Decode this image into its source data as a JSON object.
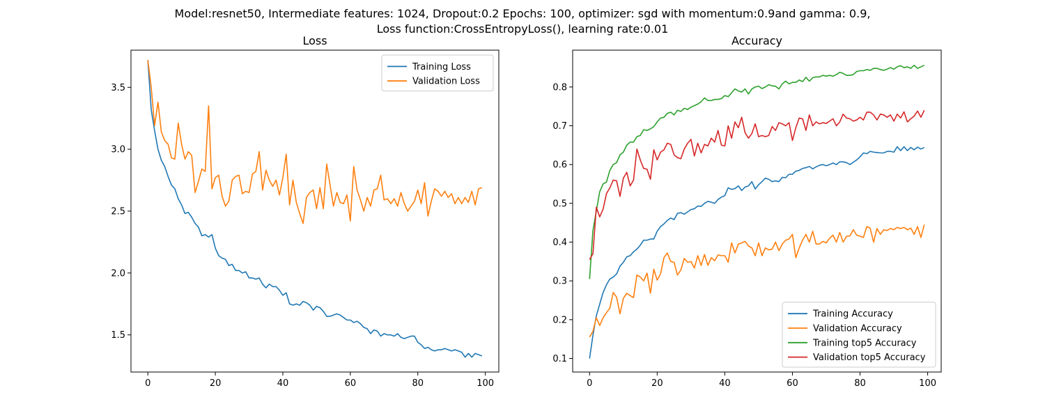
{
  "figure": {
    "suptitle_line1": "Model:resnet50, Intermediate features: 1024, Dropout:0.2 Epochs: 100, optimizer: sgd with momentum:0.9and gamma: 0.9,",
    "suptitle_line2": "Loss function:CrossEntropyLoss(), learning rate:0.01"
  },
  "colors": {
    "blue": "#1f77b4",
    "orange": "#ff7f0e",
    "green": "#2ca02c",
    "red": "#d62728"
  },
  "chart_data": [
    {
      "type": "line",
      "title": "Loss",
      "xlabel": "",
      "ylabel": "",
      "xlim": [
        -5,
        104
      ],
      "ylim": [
        1.2,
        3.8
      ],
      "xticks": [
        0,
        20,
        40,
        60,
        80,
        100
      ],
      "xtick_labels": [
        "0",
        "20",
        "40",
        "60",
        "80",
        "100"
      ],
      "yticks": [
        1.5,
        2.0,
        2.5,
        3.0,
        3.5
      ],
      "ytick_labels": [
        "1.5",
        "2.0",
        "2.5",
        "3.0",
        "3.5"
      ],
      "grid": false,
      "legend_position": "top-right",
      "series": [
        {
          "name": "Training Loss",
          "color": "#1f77b4",
          "x_start": 0,
          "values": [
            3.72,
            3.32,
            3.15,
            3.0,
            2.91,
            2.86,
            2.78,
            2.71,
            2.68,
            2.6,
            2.55,
            2.48,
            2.49,
            2.45,
            2.4,
            2.37,
            2.3,
            2.31,
            2.29,
            2.31,
            2.2,
            2.14,
            2.12,
            2.11,
            2.06,
            2.07,
            2.02,
            2.02,
            2.0,
            2.01,
            1.96,
            1.96,
            1.95,
            1.96,
            1.91,
            1.88,
            1.91,
            1.89,
            1.89,
            1.86,
            1.82,
            1.84,
            1.75,
            1.74,
            1.75,
            1.74,
            1.77,
            1.76,
            1.74,
            1.7,
            1.73,
            1.72,
            1.69,
            1.65,
            1.65,
            1.66,
            1.67,
            1.66,
            1.64,
            1.62,
            1.62,
            1.6,
            1.61,
            1.59,
            1.56,
            1.55,
            1.51,
            1.54,
            1.53,
            1.49,
            1.51,
            1.5,
            1.5,
            1.49,
            1.51,
            1.48,
            1.47,
            1.48,
            1.49,
            1.49,
            1.44,
            1.42,
            1.39,
            1.4,
            1.38,
            1.37,
            1.38,
            1.38,
            1.39,
            1.38,
            1.37,
            1.38,
            1.37,
            1.36,
            1.32,
            1.35,
            1.32,
            1.35,
            1.34,
            1.33
          ]
        },
        {
          "name": "Validation Loss",
          "color": "#ff7f0e",
          "x_start": 0,
          "values": [
            3.72,
            3.5,
            3.19,
            3.38,
            3.14,
            3.07,
            3.04,
            2.93,
            2.92,
            3.21,
            3.04,
            2.92,
            2.98,
            2.95,
            2.65,
            2.74,
            2.84,
            2.82,
            3.35,
            2.68,
            2.77,
            2.79,
            2.62,
            2.54,
            2.58,
            2.75,
            2.78,
            2.79,
            2.64,
            2.66,
            2.65,
            2.8,
            2.82,
            2.98,
            2.67,
            2.83,
            2.75,
            2.7,
            2.75,
            2.63,
            2.77,
            2.96,
            2.55,
            2.75,
            2.57,
            2.48,
            2.4,
            2.61,
            2.65,
            2.67,
            2.52,
            2.69,
            2.52,
            2.88,
            2.71,
            2.54,
            2.65,
            2.57,
            2.56,
            2.63,
            2.42,
            2.86,
            2.67,
            2.59,
            2.5,
            2.61,
            2.54,
            2.67,
            2.68,
            2.79,
            2.59,
            2.6,
            2.56,
            2.6,
            2.54,
            2.65,
            2.56,
            2.5,
            2.54,
            2.58,
            2.67,
            2.56,
            2.73,
            2.46,
            2.58,
            2.68,
            2.66,
            2.62,
            2.66,
            2.61,
            2.64,
            2.56,
            2.61,
            2.56,
            2.61,
            2.57,
            2.66,
            2.55,
            2.68,
            2.69
          ]
        }
      ]
    },
    {
      "type": "line",
      "title": "Accuracy",
      "xlabel": "",
      "ylabel": "",
      "xlim": [
        -5,
        104
      ],
      "ylim": [
        0.065,
        0.895
      ],
      "xticks": [
        0,
        20,
        40,
        60,
        80,
        100
      ],
      "xtick_labels": [
        "0",
        "20",
        "40",
        "60",
        "80",
        "100"
      ],
      "yticks": [
        0.1,
        0.2,
        0.3,
        0.4,
        0.5,
        0.6,
        0.7,
        0.8
      ],
      "ytick_labels": [
        "0.1",
        "0.2",
        "0.3",
        "0.4",
        "0.5",
        "0.6",
        "0.7",
        "0.8"
      ],
      "grid": false,
      "legend_position": "bottom-right",
      "series": [
        {
          "name": "Training Accuracy",
          "color": "#1f77b4",
          "x_start": 0,
          "values": [
            0.1,
            0.16,
            0.21,
            0.24,
            0.27,
            0.29,
            0.305,
            0.31,
            0.318,
            0.338,
            0.348,
            0.362,
            0.365,
            0.375,
            0.382,
            0.392,
            0.405,
            0.405,
            0.408,
            0.408,
            0.428,
            0.44,
            0.447,
            0.456,
            0.462,
            0.458,
            0.474,
            0.476,
            0.472,
            0.478,
            0.484,
            0.486,
            0.493,
            0.492,
            0.5,
            0.505,
            0.503,
            0.5,
            0.51,
            0.516,
            0.52,
            0.54,
            0.536,
            0.538,
            0.545,
            0.533,
            0.542,
            0.545,
            0.556,
            0.537,
            0.548,
            0.556,
            0.565,
            0.562,
            0.556,
            0.558,
            0.556,
            0.567,
            0.566,
            0.575,
            0.575,
            0.583,
            0.585,
            0.59,
            0.592,
            0.595,
            0.589,
            0.594,
            0.598,
            0.6,
            0.597,
            0.6,
            0.604,
            0.6,
            0.607,
            0.607,
            0.605,
            0.6,
            0.606,
            0.612,
            0.62,
            0.63,
            0.628,
            0.634,
            0.632,
            0.631,
            0.63,
            0.63,
            0.634,
            0.634,
            0.632,
            0.646,
            0.636,
            0.646,
            0.636,
            0.644,
            0.638,
            0.645,
            0.64,
            0.644
          ]
        },
        {
          "name": "Validation Accuracy",
          "color": "#ff7f0e",
          "x_start": 0,
          "values": [
            0.155,
            0.17,
            0.205,
            0.185,
            0.205,
            0.218,
            0.23,
            0.27,
            0.258,
            0.215,
            0.255,
            0.268,
            0.262,
            0.257,
            0.315,
            0.31,
            0.3,
            0.32,
            0.268,
            0.33,
            0.302,
            0.318,
            0.36,
            0.372,
            0.35,
            0.348,
            0.315,
            0.328,
            0.358,
            0.348,
            0.35,
            0.333,
            0.365,
            0.34,
            0.368,
            0.34,
            0.36,
            0.352,
            0.367,
            0.365,
            0.365,
            0.348,
            0.398,
            0.372,
            0.395,
            0.398,
            0.402,
            0.39,
            0.385,
            0.365,
            0.398,
            0.365,
            0.385,
            0.38,
            0.382,
            0.4,
            0.378,
            0.395,
            0.405,
            0.408,
            0.42,
            0.36,
            0.385,
            0.405,
            0.42,
            0.4,
            0.428,
            0.395,
            0.395,
            0.402,
            0.398,
            0.41,
            0.418,
            0.4,
            0.425,
            0.4,
            0.415,
            0.416,
            0.432,
            0.418,
            0.415,
            0.412,
            0.44,
            0.436,
            0.4,
            0.435,
            0.42,
            0.432,
            0.43,
            0.435,
            0.432,
            0.438,
            0.435,
            0.438,
            0.432,
            0.436,
            0.42,
            0.44,
            0.412,
            0.445
          ]
        },
        {
          "name": "Training top5 Accuracy",
          "color": "#2ca02c",
          "x_start": 0,
          "values": [
            0.305,
            0.43,
            0.48,
            0.53,
            0.55,
            0.555,
            0.585,
            0.6,
            0.605,
            0.625,
            0.632,
            0.65,
            0.658,
            0.658,
            0.672,
            0.675,
            0.69,
            0.688,
            0.692,
            0.698,
            0.71,
            0.72,
            0.722,
            0.732,
            0.735,
            0.728,
            0.74,
            0.737,
            0.745,
            0.742,
            0.748,
            0.752,
            0.756,
            0.762,
            0.772,
            0.765,
            0.765,
            0.768,
            0.768,
            0.77,
            0.778,
            0.775,
            0.785,
            0.795,
            0.79,
            0.787,
            0.795,
            0.782,
            0.795,
            0.8,
            0.802,
            0.796,
            0.8,
            0.806,
            0.803,
            0.802,
            0.795,
            0.808,
            0.815,
            0.808,
            0.812,
            0.812,
            0.818,
            0.814,
            0.825,
            0.815,
            0.824,
            0.826,
            0.826,
            0.83,
            0.828,
            0.83,
            0.828,
            0.832,
            0.838,
            0.835,
            0.83,
            0.83,
            0.832,
            0.84,
            0.842,
            0.842,
            0.845,
            0.843,
            0.848,
            0.848,
            0.845,
            0.843,
            0.846,
            0.85,
            0.846,
            0.852,
            0.855,
            0.85,
            0.852,
            0.848,
            0.856,
            0.848,
            0.852,
            0.856
          ]
        },
        {
          "name": "Validation top5 Accuracy",
          "color": "#d62728",
          "x_start": 0,
          "values": [
            0.355,
            0.37,
            0.49,
            0.465,
            0.485,
            0.525,
            0.54,
            0.56,
            0.558,
            0.518,
            0.565,
            0.58,
            0.545,
            0.56,
            0.64,
            0.612,
            0.59,
            0.588,
            0.562,
            0.638,
            0.612,
            0.632,
            0.638,
            0.655,
            0.652,
            0.625,
            0.618,
            0.615,
            0.64,
            0.655,
            0.665,
            0.622,
            0.655,
            0.63,
            0.652,
            0.648,
            0.668,
            0.658,
            0.688,
            0.65,
            0.648,
            0.7,
            0.668,
            0.71,
            0.695,
            0.722,
            0.682,
            0.668,
            0.68,
            0.705,
            0.672,
            0.675,
            0.672,
            0.675,
            0.698,
            0.688,
            0.708,
            0.705,
            0.7,
            0.708,
            0.662,
            0.695,
            0.72,
            0.718,
            0.688,
            0.728,
            0.7,
            0.71,
            0.705,
            0.708,
            0.706,
            0.712,
            0.718,
            0.7,
            0.71,
            0.73,
            0.72,
            0.718,
            0.712,
            0.715,
            0.722,
            0.715,
            0.735,
            0.735,
            0.728,
            0.715,
            0.73,
            0.728,
            0.722,
            0.728,
            0.712,
            0.73,
            0.72,
            0.736,
            0.71,
            0.718,
            0.725,
            0.738,
            0.722,
            0.74
          ]
        }
      ]
    }
  ]
}
